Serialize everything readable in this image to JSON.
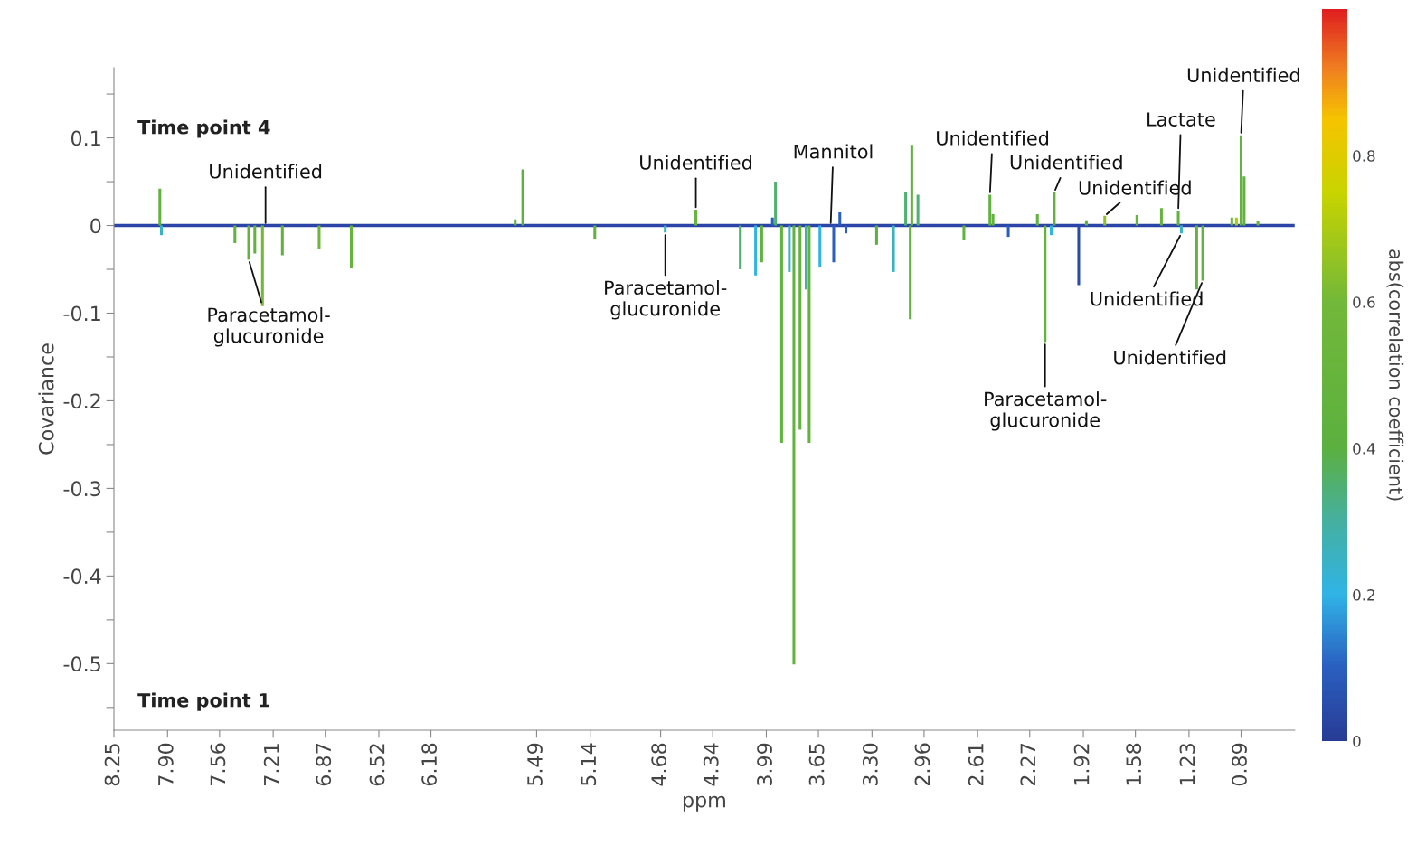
{
  "chart_data": {
    "type": "bar",
    "xlabel": "ppm",
    "ylabel": "Covariance",
    "clabel": "abs(correlation coefficient)",
    "x": [
      7.95,
      7.94,
      7.46,
      7.37,
      7.33,
      7.28,
      7.15,
      6.91,
      6.7,
      5.63,
      5.58,
      5.11,
      4.65,
      4.45,
      4.16,
      4.06,
      4.02,
      3.95,
      3.93,
      3.89,
      3.84,
      3.81,
      3.77,
      3.73,
      3.71,
      3.64,
      3.55,
      3.51,
      3.47,
      3.27,
      3.16,
      3.08,
      3.05,
      3.04,
      3.0,
      2.7,
      2.53,
      2.51,
      2.41,
      2.22,
      2.17,
      2.13,
      2.11,
      1.95,
      1.9,
      1.78,
      1.57,
      1.41,
      1.3,
      1.28,
      1.18,
      1.14,
      0.95,
      0.92,
      0.89,
      0.87,
      0.78
    ],
    "values": [
      0.042,
      -0.011,
      -0.02,
      -0.039,
      -0.032,
      -0.092,
      -0.034,
      -0.027,
      -0.049,
      0.007,
      0.064,
      -0.015,
      -0.008,
      0.018,
      -0.05,
      -0.057,
      -0.042,
      0.009,
      0.05,
      -0.248,
      -0.053,
      -0.501,
      -0.233,
      -0.073,
      -0.248,
      -0.047,
      -0.042,
      0.015,
      -0.009,
      -0.022,
      -0.053,
      0.038,
      -0.107,
      0.092,
      0.035,
      -0.017,
      0.035,
      0.013,
      -0.013,
      0.013,
      -0.133,
      -0.011,
      0.038,
      -0.068,
      0.006,
      0.011,
      0.012,
      0.02,
      0.017,
      -0.009,
      -0.073,
      -0.063,
      0.009,
      0.009,
      0.103,
      0.056,
      0.005
    ],
    "cvalues": [
      0.45,
      0.25,
      0.45,
      0.45,
      0.45,
      0.6,
      0.45,
      0.55,
      0.5,
      0.45,
      0.4,
      0.45,
      0.25,
      0.5,
      0.35,
      0.2,
      0.45,
      0.1,
      0.35,
      0.45,
      0.25,
      0.45,
      0.45,
      0.3,
      0.45,
      0.2,
      0.1,
      0.1,
      0.1,
      0.4,
      0.25,
      0.35,
      0.45,
      0.45,
      0.35,
      0.45,
      0.45,
      0.45,
      0.1,
      0.45,
      0.45,
      0.2,
      0.45,
      0.05,
      0.45,
      0.65,
      0.5,
      0.5,
      0.45,
      0.25,
      0.45,
      0.45,
      0.55,
      0.7,
      0.45,
      0.45,
      0.5
    ],
    "clim": [
      0,
      1
    ],
    "cticks": [
      0,
      0.2,
      0.4,
      0.6,
      0.8
    ],
    "xlim": [
      8.25,
      0.54
    ],
    "xticks": [
      8.25,
      {
        "value": 7.9,
        "label": "7.90"
      },
      7.56,
      7.21,
      6.87,
      6.52,
      6.18,
      5.49,
      5.14,
      4.68,
      4.34,
      3.99,
      3.65,
      {
        "value": 3.3,
        "label": "3.30"
      },
      2.96,
      2.61,
      2.27,
      1.92,
      1.58,
      1.23,
      0.89
    ],
    "ylim": [
      -0.576,
      0.18
    ],
    "yticks": [
      {
        "value": 0.15,
        "label": null
      },
      0.1,
      {
        "value": 0.05,
        "label": null
      },
      0,
      {
        "value": -0.05,
        "label": null
      },
      -0.1,
      {
        "value": -0.15,
        "label": null
      },
      -0.2,
      {
        "value": -0.25,
        "label": null
      },
      -0.3,
      {
        "value": -0.35,
        "label": null
      },
      -0.4,
      {
        "value": -0.45,
        "label": null
      },
      -0.5,
      {
        "value": -0.55,
        "label": null
      }
    ],
    "ref_lines": [
      {
        "axis": "y",
        "value": 0,
        "color": "#2b44a8"
      }
    ],
    "grid": false,
    "annotations": [
      "Time point 4",
      "Time point 1",
      {
        "text": "Unidentified",
        "x": 7.26,
        "y": 0.0
      },
      {
        "text": "Paracetamol-\nglucuronide",
        "x": 7.37,
        "y": -0.039
      },
      {
        "text": "Paracetamol-\nglucuronide",
        "x": 4.65,
        "y": -0.008
      },
      {
        "text": "Unidentified",
        "x": 4.45,
        "y": 0.018
      },
      {
        "text": "Mannitol",
        "x": 3.57,
        "y": 0.0
      },
      {
        "text": "Unidentified",
        "x": 2.53,
        "y": 0.035
      },
      {
        "text": "Unidentified",
        "x": 2.11,
        "y": 0.038
      },
      {
        "text": "Unidentified",
        "x": 1.78,
        "y": 0.011
      },
      {
        "text": "Lactate",
        "x": 1.3,
        "y": 0.017
      },
      {
        "text": "Unidentified",
        "x": 0.89,
        "y": 0.103
      },
      {
        "text": "Paracetamol-\nglucuronide",
        "x": 2.17,
        "y": -0.133
      },
      {
        "text": "Unidentified",
        "x": 1.28,
        "y": -0.009
      },
      {
        "text": "Unidentified",
        "x": 1.14,
        "y": -0.063
      }
    ]
  }
}
